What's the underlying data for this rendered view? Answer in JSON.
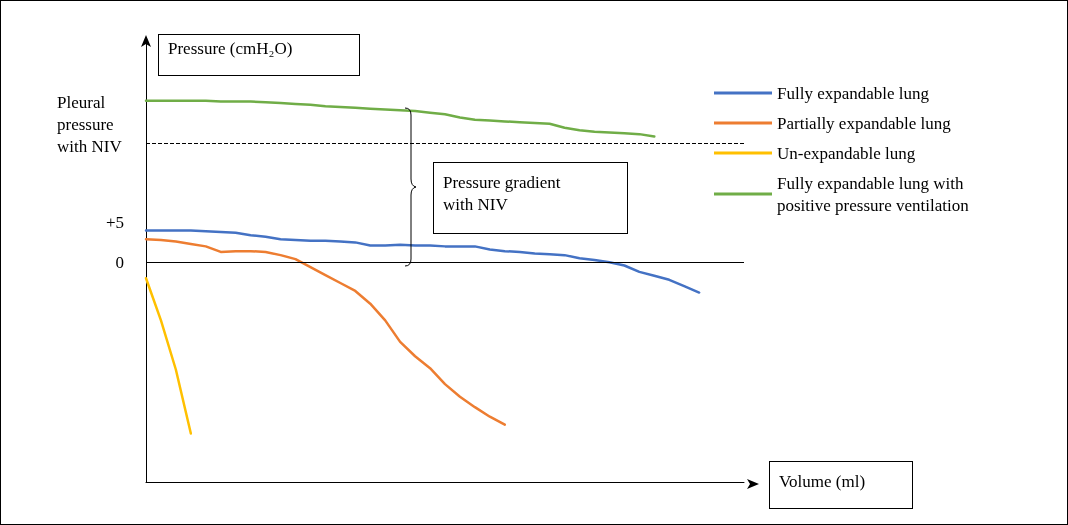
{
  "chart_data": {
    "type": "line",
    "categories": [
      null,
      null,
      null,
      null,
      null,
      null,
      null,
      null,
      null,
      null,
      null,
      null,
      null,
      null,
      null,
      null,
      null,
      null,
      null,
      null,
      null,
      null,
      null,
      null,
      null,
      null,
      null,
      null,
      null,
      null,
      null,
      null,
      null,
      null,
      null,
      null,
      null,
      null,
      null,
      null,
      null
    ],
    "series": [
      {
        "name": "Fully expandable lung",
        "color": "#4472c4",
        "values": [
          4.0,
          4.0,
          4.0,
          4.0,
          3.9,
          3.8,
          3.7,
          3.4,
          3.2,
          2.9,
          2.8,
          2.7,
          2.7,
          2.6,
          2.5,
          2.1,
          2.1,
          2.2,
          2.1,
          2.1,
          2.0,
          2.0,
          2.0,
          1.6,
          1.4,
          1.3,
          1.1,
          1.0,
          0.9,
          0.5,
          0.3,
          0.0,
          -0.4,
          -1.2,
          -1.7,
          -2.2,
          -3.0,
          -3.8,
          null,
          null,
          null
        ]
      },
      {
        "name": "Partially expandable lung",
        "color": "#ed7d31",
        "values": [
          2.9,
          2.8,
          2.6,
          2.3,
          2.0,
          1.3,
          1.4,
          1.4,
          1.3,
          0.9,
          0.4,
          -0.6,
          -1.6,
          -2.6,
          -3.6,
          -5.2,
          -7.3,
          -10.0,
          -11.8,
          -13.3,
          -15.3,
          -16.9,
          -18.2,
          -19.4,
          -20.4,
          null,
          null,
          null,
          null,
          null,
          null,
          null,
          null,
          null,
          null,
          null,
          null,
          null,
          null,
          null,
          null
        ]
      },
      {
        "name": "Un-expandable lung",
        "color": "#ffc000",
        "values": [
          -2.0,
          -7.3,
          -13.5,
          -21.5,
          null,
          null,
          null,
          null,
          null,
          null,
          null,
          null,
          null,
          null,
          null,
          null,
          null,
          null,
          null,
          null,
          null,
          null,
          null,
          null,
          null,
          null,
          null,
          null,
          null,
          null,
          null,
          null,
          null,
          null,
          null,
          null,
          null,
          null,
          null,
          null,
          null
        ]
      },
      {
        "name": "Fully expandable lung with positive pressure ventilation",
        "color": "#70ad47",
        "values": [
          20.3,
          20.3,
          20.3,
          20.3,
          20.3,
          20.2,
          20.2,
          20.2,
          20.1,
          20.0,
          19.9,
          19.8,
          19.6,
          19.5,
          19.4,
          19.3,
          19.2,
          19.1,
          19.0,
          18.8,
          18.6,
          18.2,
          17.9,
          17.8,
          17.7,
          17.6,
          17.5,
          17.4,
          16.9,
          16.6,
          16.4,
          16.3,
          16.2,
          16.1,
          15.8,
          null,
          null,
          null,
          null,
          null,
          null
        ]
      }
    ],
    "xlabel": "Volume (ml)",
    "ylabel": "Pressure (cmH₂O)",
    "ylim": [
      -27.6,
      27.8
    ],
    "yticks": [
      0,
      {
        "value": 5,
        "label": "+5"
      }
    ],
    "tick_labels": "y",
    "ref_lines": [
      {
        "axis": "y",
        "value": 14.9,
        "label": "Pleural pressure with NIV",
        "color": "#000000",
        "line_style": "dashed"
      },
      {
        "axis": "y",
        "value": 0,
        "color": "#000000",
        "line_style": "solid"
      }
    ],
    "annotations": [
      "Pressure gradient with NIV"
    ],
    "legend": "top right",
    "grid": false,
    "marker": "none",
    "line_style": "solid"
  }
}
